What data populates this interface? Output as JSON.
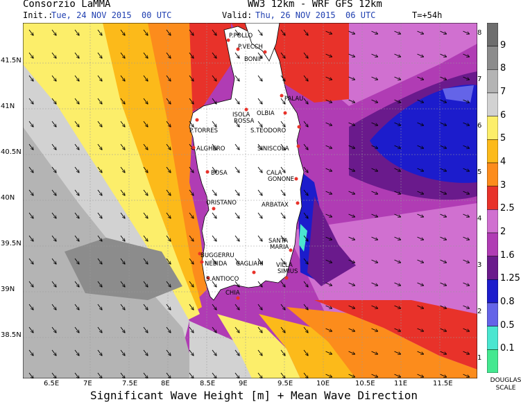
{
  "header": {
    "org": "Consorzio LaMMA",
    "model": "WW3 12km - WRF GFS 12km",
    "init_label": "Init.:",
    "init_value": "Tue, 24 NOV 2015  00 UTC",
    "valid_label": "Valid:",
    "valid_value": "Thu, 26 NOV 2015  06 UTC",
    "lead": "T=+54h"
  },
  "footer": "Significant Wave Height [m] + Mean Wave Direction",
  "lon_ticks": [
    "6.5E",
    "7E",
    "7.5E",
    "8E",
    "8.5E",
    "9E",
    "9.5E",
    "10E",
    "10.5E",
    "11E",
    "11.5E"
  ],
  "lat_ticks": [
    "41.5N",
    "41N",
    "40.5N",
    "40N",
    "39.5N",
    "39N",
    "38.5N"
  ],
  "places": [
    "P.POLLO",
    "P.VECCH",
    "BONIF",
    "PALAU",
    "ISOLA ROSSA",
    "OLBIA",
    "P.TORRES",
    "S.TEODORO",
    "ALGHERO",
    "SINISCOLA",
    "BOSA",
    "CALA GONONE",
    "ORISTANO",
    "ARBATAX",
    "SANTA MARIA",
    "BUGGERRU",
    "NEBIDA",
    "CAGLIARI",
    "VILLA SIMIUS",
    "S.ANTIOCO",
    "CHIA"
  ],
  "scale": {
    "values": [
      "9",
      "8",
      "7",
      "6",
      "5",
      "4",
      "3",
      "2.5",
      "2",
      "1.6",
      "1.25",
      "0.8",
      "0.5",
      "0.1"
    ],
    "colors": [
      "#6e6e6e",
      "#8c8c8c",
      "#b4b4b4",
      "#d2d2d2",
      "#fcee6a",
      "#fcba1a",
      "#fc8c1c",
      "#e8322a",
      "#d070d0",
      "#b03cb4",
      "#6a1a8c",
      "#1c1ccc",
      "#6464e8",
      "#4ae6d0",
      "#44e890"
    ],
    "douglas": [
      "8",
      "7",
      "6",
      "5",
      "4",
      "3",
      "2",
      "1"
    ],
    "douglas_caption": "DOUGLAS SCALE"
  }
}
